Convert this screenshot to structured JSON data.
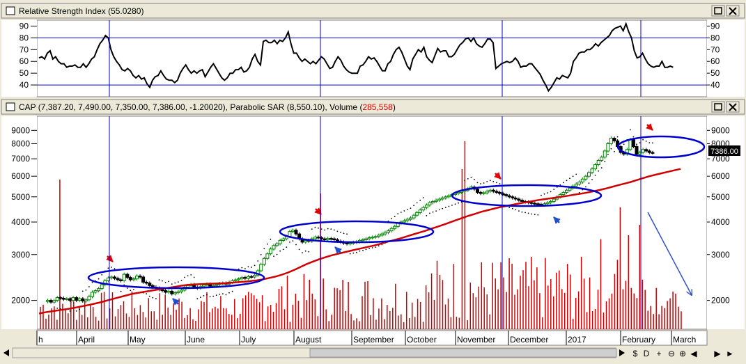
{
  "rsi_panel": {
    "title": "Relative Strength Index (55.0280)",
    "ticks": [
      "90",
      "80",
      "70",
      "60",
      "50",
      "40"
    ]
  },
  "price_panel": {
    "title_prefix": "CAP (7,387.20, 7,490.00, 7,350.00, 7,386.00, -1.20020), Parabolic SAR (8,550.10), Volume (",
    "volume_value": "285,558",
    "title_suffix": ")",
    "ticks": [
      "9000",
      "8000",
      "7000",
      "6000",
      "5000",
      "4000",
      "3000",
      "2000"
    ],
    "last_price_label": "7386.00"
  },
  "window_buttons": {
    "maximize": "□",
    "close": "✕"
  },
  "months": [
    "h",
    "April",
    "May",
    "June",
    "July",
    "August",
    "September",
    "October",
    "November",
    "December",
    "2017",
    "February",
    "March"
  ],
  "nav_buttons": [
    "$",
    "D",
    "+",
    "⊖",
    "⊕",
    "◀",
    "▶",
    "►"
  ],
  "colors": {
    "price_up": "#008000",
    "price_down": "#000000",
    "sma": "#d00000",
    "volume": "#cc0000",
    "vertical_lines": "#0000cc",
    "ellipses": "#0000cc",
    "peak_arrows": "#e00000",
    "trough_arrows": "#1f4fd0",
    "trend_arrow": "#3050d0"
  },
  "chart_data": [
    {
      "type": "line",
      "name": "rsi",
      "ylim": [
        30,
        95
      ],
      "gridlines": [
        40,
        80
      ],
      "x_range": [
        0,
        240
      ],
      "values": [
        63,
        64,
        62,
        67,
        69,
        62,
        64,
        60,
        58,
        58,
        55,
        56,
        56,
        57,
        55,
        55,
        58,
        55,
        58,
        62,
        64,
        70,
        75,
        78,
        82,
        80,
        70,
        64,
        60,
        57,
        53,
        52,
        54,
        52,
        48,
        46,
        48,
        45,
        46,
        41,
        38,
        44,
        47,
        48,
        52,
        48,
        45,
        44,
        44,
        42,
        44,
        50,
        54,
        57,
        53,
        50,
        52,
        50,
        52,
        53,
        47,
        51,
        55,
        58,
        54,
        50,
        46,
        44,
        46,
        50,
        50,
        53,
        53,
        55,
        51,
        52,
        55,
        62,
        66,
        60,
        57,
        77,
        78,
        76,
        76,
        78,
        75,
        78,
        77,
        80,
        85,
        75,
        67,
        67,
        63,
        60,
        62,
        60,
        58,
        60,
        58,
        61,
        64,
        62,
        58,
        54,
        55,
        60,
        64,
        61,
        56,
        53,
        51,
        50,
        50,
        50,
        56,
        57,
        60,
        64,
        62,
        63,
        60,
        56,
        52,
        52,
        58,
        60,
        66,
        70,
        72,
        68,
        62,
        56,
        53,
        62,
        66,
        70,
        68,
        72,
        64,
        61,
        59,
        65,
        71,
        68,
        69,
        69,
        64,
        64,
        66,
        70,
        74,
        76,
        79,
        80,
        77,
        80,
        75,
        73,
        72,
        75,
        79,
        79,
        76,
        54,
        56,
        58,
        59,
        60,
        59,
        60,
        63,
        60,
        55,
        56,
        56,
        58,
        58,
        55,
        52,
        49,
        44,
        40,
        35,
        38,
        42,
        46,
        45,
        48,
        47,
        46,
        50,
        60,
        63,
        67,
        68,
        68,
        70,
        70,
        72,
        75,
        73,
        76,
        78,
        80,
        82,
        86,
        88,
        89,
        90,
        86,
        92,
        85,
        80,
        69,
        63,
        64,
        67,
        62,
        58,
        56,
        55,
        56,
        56,
        60,
        55,
        55,
        56,
        55
      ]
    },
    {
      "type": "line",
      "name": "price",
      "scale": "log",
      "ylim": [
        1550,
        10200
      ],
      "x_range": [
        0,
        240
      ],
      "values": [
        1980,
        2000,
        1970,
        2000,
        2050,
        2040,
        2020,
        2030,
        2000,
        2050,
        2000,
        2030,
        1990,
        2010,
        2070,
        2150,
        2180,
        2220,
        2300,
        2380,
        2440,
        2460,
        2430,
        2400,
        2380,
        2520,
        2450,
        2400,
        2420,
        2480,
        2460,
        2350,
        2330,
        2280,
        2250,
        2230,
        2200,
        2180,
        2150,
        2170,
        2120,
        2140,
        2160,
        2190,
        2250,
        2280,
        2300,
        2250,
        2230,
        2260,
        2290,
        2310,
        2270,
        2280,
        2300,
        2320,
        2330,
        2310,
        2350,
        2380,
        2400,
        2420,
        2450,
        2430,
        2470,
        2460,
        2500,
        2600,
        2750,
        2900,
        3020,
        3150,
        3250,
        3300,
        3400,
        3450,
        3520,
        3680,
        3720,
        3600,
        3450,
        3350,
        3400,
        3380,
        3450,
        3500,
        3480,
        3450,
        3420,
        3460,
        3450,
        3420,
        3380,
        3350,
        3320,
        3300,
        3320,
        3340,
        3360,
        3400,
        3420,
        3450,
        3480,
        3500,
        3520,
        3560,
        3600,
        3650,
        3700,
        3780,
        3850,
        3950,
        4000,
        4050,
        4100,
        4150,
        4250,
        4350,
        4450,
        4550,
        4650,
        4750,
        4800,
        4850,
        4900,
        4950,
        5000,
        5050,
        5100,
        5150,
        5200,
        5250,
        5300,
        5380,
        5450,
        5350,
        5200,
        5150,
        5180,
        5250,
        5300,
        5250,
        5200,
        5150,
        5100,
        5050,
        5000,
        4950,
        4900,
        4850,
        4800,
        4780,
        4750,
        4720,
        4700,
        4680,
        4650,
        4700,
        4750,
        4800,
        4900,
        5000,
        5100,
        5200,
        5300,
        5400,
        5500,
        5600,
        5700,
        5850,
        6000,
        6200,
        6400,
        6650,
        6900,
        7100,
        7500,
        8000,
        8400,
        8200,
        7800,
        7400,
        7300,
        7600,
        8300,
        7800,
        7300,
        7400,
        7600,
        7500,
        7400,
        7386
      ]
    },
    {
      "type": "line",
      "name": "sma",
      "scale": "log",
      "values": [
        1780,
        1800,
        1815,
        1830,
        1845,
        1860,
        1880,
        1900,
        1920,
        1945,
        1970,
        2000,
        2030,
        2060,
        2090,
        2120,
        2140,
        2160,
        2180,
        2200,
        2220,
        2240,
        2260,
        2280,
        2295,
        2305,
        2310,
        2315,
        2320,
        2325,
        2330,
        2340,
        2350,
        2360,
        2375,
        2390,
        2410,
        2440,
        2470,
        2510,
        2560,
        2620,
        2690,
        2760,
        2820,
        2880,
        2930,
        2980,
        3020,
        3060,
        3100,
        3140,
        3180,
        3220,
        3260,
        3310,
        3360,
        3410,
        3460,
        3520,
        3580,
        3640,
        3700,
        3770,
        3840,
        3910,
        3990,
        4070,
        4150,
        4230,
        4300,
        4380,
        4440,
        4500,
        4560,
        4610,
        4660,
        4710,
        4760,
        4800,
        4850,
        4890,
        4930,
        4970,
        5010,
        5050,
        5100,
        5140,
        5190,
        5250,
        5310,
        5380,
        5460,
        5540,
        5620,
        5700,
        5800,
        5900,
        6000,
        6080,
        6160,
        6240,
        6320,
        6400
      ]
    },
    {
      "type": "bar",
      "name": "volume",
      "ylim": [
        0,
        1
      ]
    }
  ]
}
